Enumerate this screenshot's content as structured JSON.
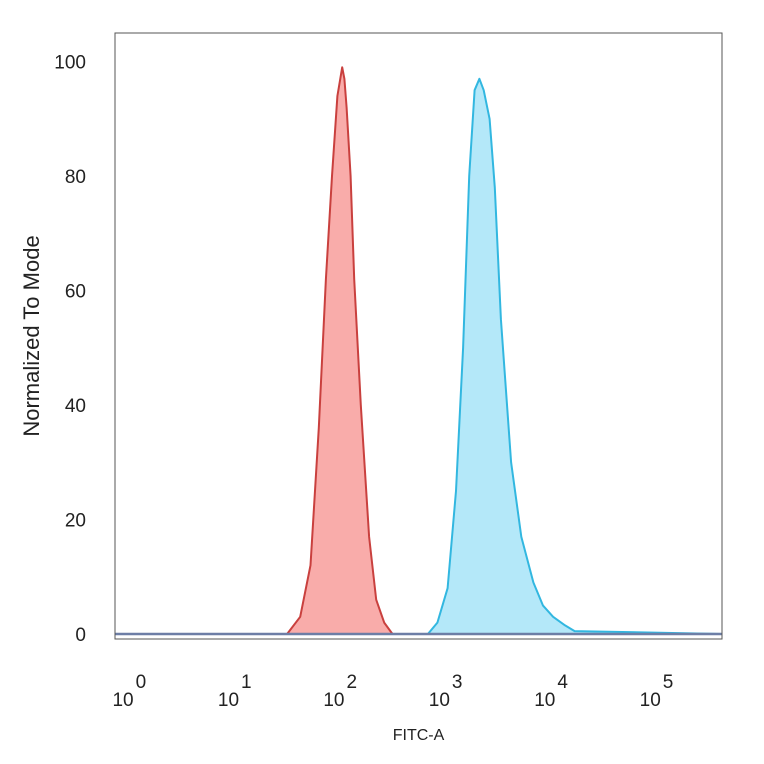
{
  "chart_data": {
    "type": "area",
    "title": "",
    "xlabel": "FITC-A",
    "ylabel": "Normalized To Mode",
    "x_scale": "log",
    "xlim": [
      0.7,
      400000
    ],
    "ylim": [
      0,
      105
    ],
    "grid": false,
    "legend": "none",
    "x_ticks": [
      {
        "base": "10",
        "exp": "0",
        "value": 1
      },
      {
        "base": "10",
        "exp": "1",
        "value": 10
      },
      {
        "base": "10",
        "exp": "2",
        "value": 100
      },
      {
        "base": "10",
        "exp": "3",
        "value": 1000
      },
      {
        "base": "10",
        "exp": "4",
        "value": 10000
      },
      {
        "base": "10",
        "exp": "5",
        "value": 100000
      }
    ],
    "y_ticks": [
      {
        "label": "0",
        "value": 0
      },
      {
        "label": "20",
        "value": 20
      },
      {
        "label": "40",
        "value": 40
      },
      {
        "label": "60",
        "value": 60
      },
      {
        "label": "80",
        "value": 80
      },
      {
        "label": "100",
        "value": 100
      }
    ],
    "series": [
      {
        "fill": "#f8a5a3",
        "stroke": "#c9403e",
        "x": [
          0.7,
          30,
          40,
          50,
          60,
          70,
          80,
          90,
          100,
          105,
          110,
          120,
          130,
          150,
          180,
          210,
          250,
          300,
          400000
        ],
        "y": [
          0,
          0,
          3,
          12,
          36,
          62,
          80,
          94,
          99,
          97,
          92,
          80,
          62,
          40,
          17,
          6,
          2,
          0,
          0
        ]
      },
      {
        "fill": "#aee6f8",
        "stroke": "#32b7e0",
        "x": [
          0.7,
          650,
          800,
          1000,
          1200,
          1400,
          1600,
          1800,
          2000,
          2200,
          2500,
          2800,
          3200,
          4000,
          5000,
          6500,
          8000,
          10000,
          13000,
          16000,
          400000
        ],
        "y": [
          0,
          0,
          2,
          8,
          25,
          50,
          80,
          95,
          97,
          95,
          90,
          78,
          55,
          30,
          17,
          9,
          5,
          3,
          1.5,
          0.5,
          0
        ]
      }
    ]
  }
}
